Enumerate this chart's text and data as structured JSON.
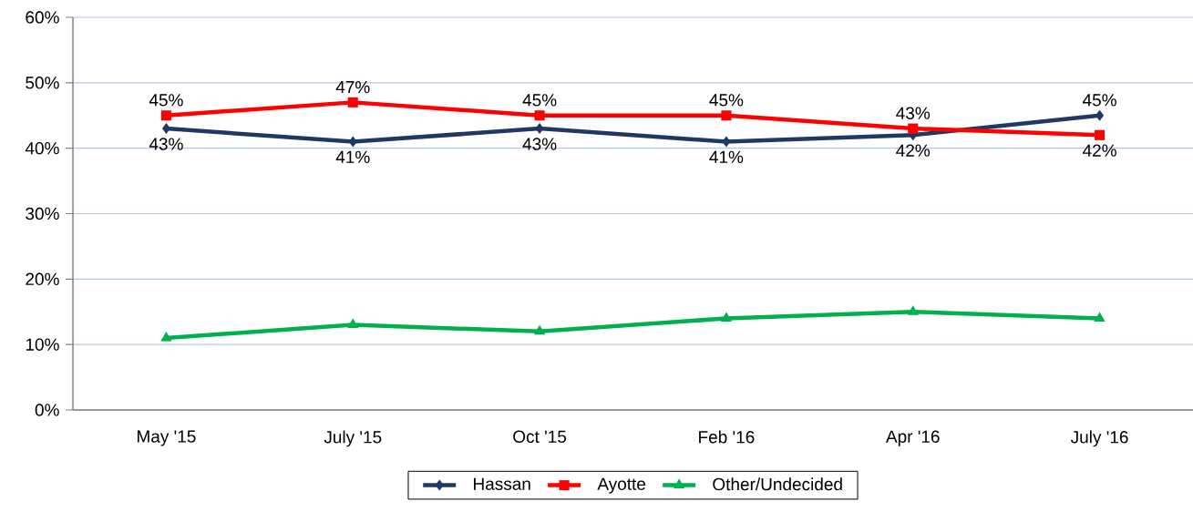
{
  "chart_data": {
    "type": "line",
    "categories": [
      "May '15",
      "July '15",
      "Oct '15",
      "Feb '16",
      "Apr '16",
      "July '16"
    ],
    "series": [
      {
        "name": "Hassan",
        "color": "#1f3864",
        "marker": "diamond",
        "values": [
          43,
          41,
          43,
          41,
          42,
          45
        ],
        "value_labels": [
          "43%",
          "41%",
          "43%",
          "41%",
          "42%",
          "45%"
        ]
      },
      {
        "name": "Ayotte",
        "color": "#ff0000",
        "marker": "square",
        "values": [
          45,
          47,
          45,
          45,
          43,
          42
        ],
        "value_labels": [
          "45%",
          "47%",
          "45%",
          "45%",
          "43%",
          "42%"
        ]
      },
      {
        "name": "Other/Undecided",
        "color": "#00b050",
        "marker": "triangle",
        "values": [
          11,
          13,
          12,
          14,
          15,
          14
        ]
      }
    ],
    "ylim": [
      0,
      60
    ],
    "yticks": [
      {
        "value": 0,
        "label": "0%"
      },
      {
        "value": 10,
        "label": "10%"
      },
      {
        "value": 20,
        "label": "20%"
      },
      {
        "value": 30,
        "label": "30%"
      },
      {
        "value": 40,
        "label": "40%"
      },
      {
        "value": 50,
        "label": "50%"
      },
      {
        "value": 60,
        "label": "60%"
      }
    ],
    "grid": "y",
    "legend": "bottom",
    "line_style": "solid"
  }
}
